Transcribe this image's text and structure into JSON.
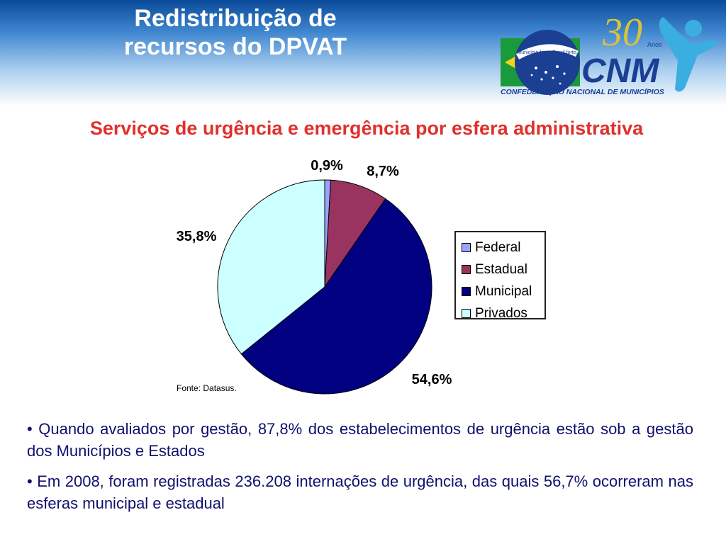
{
  "slide": {
    "title_line1": "Redistribuição de",
    "title_line2": "recursos do DPVAT"
  },
  "logo": {
    "text": "CNM",
    "anos_number": "30",
    "anos_label": "Anos",
    "tagline": "CONFEDERAÇÃO NACIONAL DE MUNICÍPIOS",
    "motto": "Município forte. Brasil forte."
  },
  "chart_data": {
    "type": "pie",
    "title": "Serviços de urgência e emergência por esfera administrativa",
    "categories": [
      "Federal",
      "Estadual",
      "Municipal",
      "Privados"
    ],
    "values": [
      0.9,
      8.7,
      54.6,
      35.8
    ],
    "labels": [
      "0,9%",
      "8,7%",
      "54,6%",
      "35,8%"
    ],
    "colors": [
      "#9aa4ff",
      "#993360",
      "#000080",
      "#ccffff"
    ],
    "legend_position": "right"
  },
  "source": "Fonte: Datasus.",
  "bullets": [
    "•  Quando avaliados por gestão, 87,8% dos estabelecimentos de urgência estão sob a gestão dos Municípios e Estados",
    "•  Em 2008, foram registradas 236.208 internações de urgência, das quais 56,7% ocorreram nas esferas municipal e estadual"
  ]
}
